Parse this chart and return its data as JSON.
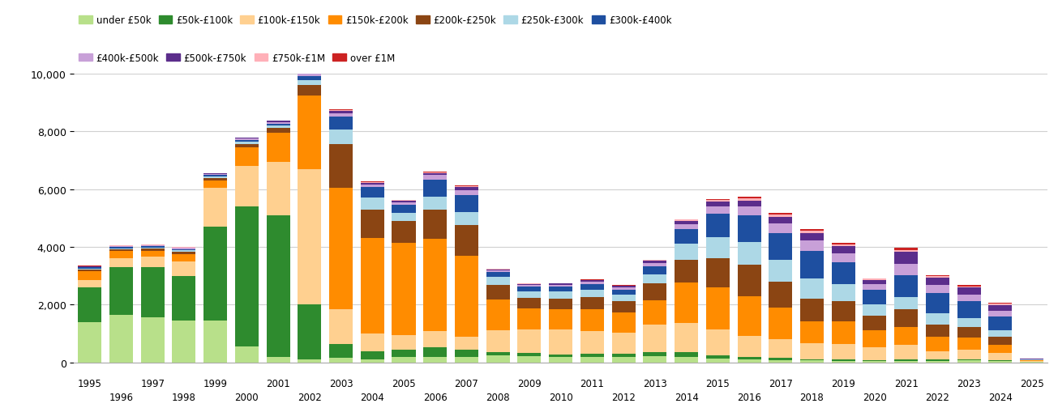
{
  "years": [
    1995,
    1996,
    1997,
    1998,
    1999,
    2000,
    2001,
    2002,
    2003,
    2004,
    2005,
    2006,
    2007,
    2008,
    2009,
    2010,
    2011,
    2012,
    2013,
    2014,
    2015,
    2016,
    2017,
    2018,
    2019,
    2020,
    2021,
    2022,
    2023,
    2024,
    2025
  ],
  "categories": [
    "under £50k",
    "£50k-£100k",
    "£100k-£150k",
    "£150k-£200k",
    "£200k-£250k",
    "£250k-£300k",
    "£300k-£400k",
    "£400k-£500k",
    "£500k-£750k",
    "£750k-£1M",
    "over £1M"
  ],
  "colors": [
    "#b8e08a",
    "#2e8b2e",
    "#ffd090",
    "#ff8c00",
    "#8b4513",
    "#add8e6",
    "#1e4fa0",
    "#c8a0d8",
    "#5b2d8b",
    "#ffb0b8",
    "#cc2222"
  ],
  "data": {
    "under £50k": [
      1400,
      1650,
      1550,
      1450,
      1450,
      550,
      200,
      100,
      150,
      100,
      200,
      180,
      200,
      250,
      230,
      180,
      190,
      200,
      220,
      180,
      130,
      100,
      90,
      70,
      60,
      50,
      60,
      60,
      70,
      50,
      20
    ],
    "£50k-£100k": [
      1200,
      1650,
      1750,
      1550,
      3250,
      4850,
      4900,
      1900,
      500,
      300,
      250,
      350,
      250,
      120,
      100,
      100,
      100,
      90,
      130,
      180,
      120,
      80,
      70,
      50,
      40,
      40,
      60,
      40,
      40,
      30,
      10
    ],
    "£100k-£150k": [
      250,
      300,
      350,
      500,
      1350,
      1400,
      1850,
      4700,
      1200,
      600,
      500,
      550,
      450,
      750,
      800,
      850,
      800,
      750,
      950,
      1000,
      900,
      750,
      650,
      550,
      550,
      450,
      500,
      300,
      330,
      250,
      15
    ],
    "£150k-£200k": [
      300,
      250,
      220,
      250,
      250,
      650,
      1000,
      2550,
      4200,
      3300,
      3200,
      3200,
      2800,
      1050,
      750,
      700,
      750,
      680,
      850,
      1400,
      1450,
      1350,
      1100,
      750,
      780,
      580,
      620,
      500,
      420,
      280,
      25
    ],
    "£200k-£250k": [
      60,
      60,
      65,
      80,
      75,
      120,
      160,
      350,
      1500,
      1000,
      750,
      1000,
      1050,
      520,
      360,
      380,
      420,
      400,
      580,
      800,
      1000,
      1100,
      880,
      780,
      680,
      500,
      600,
      420,
      380,
      280,
      15
    ],
    "£250k-£300k": [
      40,
      40,
      42,
      48,
      50,
      65,
      80,
      160,
      500,
      400,
      280,
      460,
      460,
      260,
      210,
      240,
      250,
      220,
      330,
      550,
      750,
      800,
      760,
      720,
      590,
      400,
      430,
      370,
      290,
      220,
      8
    ],
    "£300k-£400k": [
      40,
      48,
      48,
      50,
      55,
      72,
      80,
      160,
      460,
      360,
      280,
      580,
      580,
      170,
      165,
      170,
      200,
      185,
      280,
      500,
      800,
      920,
      930,
      930,
      760,
      500,
      760,
      720,
      580,
      490,
      15
    ],
    "£400k-£500k": [
      22,
      24,
      24,
      30,
      32,
      40,
      48,
      64,
      120,
      96,
      80,
      160,
      165,
      64,
      65,
      65,
      80,
      72,
      96,
      170,
      250,
      300,
      320,
      380,
      320,
      200,
      380,
      280,
      250,
      200,
      8
    ],
    "£500k-£750k": [
      16,
      16,
      20,
      24,
      28,
      32,
      40,
      48,
      80,
      64,
      56,
      80,
      110,
      40,
      40,
      48,
      56,
      56,
      80,
      120,
      165,
      210,
      235,
      250,
      235,
      135,
      420,
      250,
      230,
      195,
      8
    ],
    "£750k-£1M": [
      8,
      8,
      8,
      8,
      8,
      8,
      12,
      12,
      24,
      20,
      16,
      24,
      42,
      12,
      12,
      12,
      16,
      16,
      24,
      40,
      58,
      68,
      75,
      75,
      67,
      40,
      68,
      50,
      50,
      40,
      4
    ],
    "over £1M": [
      8,
      12,
      12,
      12,
      12,
      8,
      12,
      12,
      24,
      16,
      12,
      24,
      24,
      8,
      12,
      8,
      8,
      12,
      16,
      24,
      40,
      50,
      58,
      58,
      50,
      24,
      68,
      32,
      40,
      32,
      2
    ]
  },
  "ylim": [
    0,
    10000
  ],
  "yticks": [
    0,
    2000,
    4000,
    6000,
    8000,
    10000
  ],
  "background_color": "#ffffff",
  "grid_color": "#d0d0d0"
}
